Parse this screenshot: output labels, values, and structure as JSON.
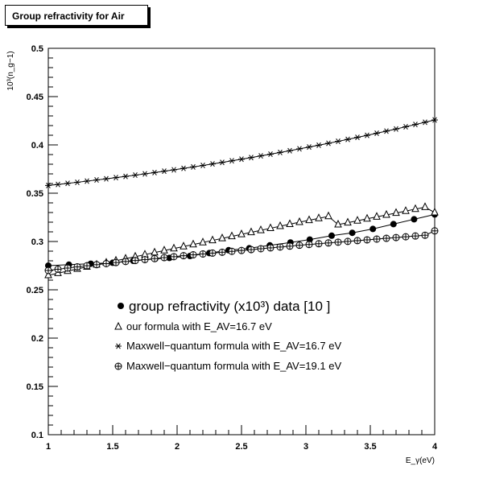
{
  "chart_data": {
    "type": "scatter",
    "title": "Group refractivity for Air",
    "xlabel": "E_γ(eV)",
    "ylabel": "10³(n_g−1)",
    "xlim": [
      1,
      4
    ],
    "ylim": [
      0.1,
      0.5
    ],
    "x_ticks": [
      "1",
      "1.5",
      "2",
      "2.5",
      "3",
      "3.5",
      "4"
    ],
    "y_ticks": [
      "0.1",
      "0.15",
      "0.2",
      "0.25",
      "0.3",
      "0.35",
      "0.4",
      "0.45",
      "0.5"
    ],
    "grid": false,
    "legend_position": "center",
    "legend": [
      "group refractivity (x10³) data   [10   ]",
      "our formula with E_AV=16.7 eV",
      "Maxwell−quantum formula with E_AV=16.7 eV",
      "Maxwell−quantum formula with E_AV=19.1 eV"
    ],
    "series": [
      {
        "marker": "filled-circle",
        "with_line": true,
        "x": [
          1.0,
          1.16,
          1.33,
          1.5,
          1.66,
          1.83,
          1.94,
          2.1,
          2.25,
          2.4,
          2.56,
          2.72,
          2.88,
          3.03,
          3.2,
          3.36,
          3.52,
          3.68,
          3.84,
          4.0
        ],
        "y": [
          0.275,
          0.276,
          0.277,
          0.278,
          0.28,
          0.282,
          0.283,
          0.285,
          0.288,
          0.291,
          0.293,
          0.296,
          0.299,
          0.302,
          0.306,
          0.309,
          0.313,
          0.318,
          0.323,
          0.328
        ]
      },
      {
        "marker": "open-triangle",
        "with_line": true,
        "x": [
          1.0,
          1.075,
          1.15,
          1.225,
          1.3,
          1.375,
          1.45,
          1.525,
          1.6,
          1.675,
          1.75,
          1.825,
          1.9,
          1.975,
          2.05,
          2.125,
          2.2,
          2.275,
          2.35,
          2.425,
          2.5,
          2.575,
          2.65,
          2.725,
          2.8,
          2.875,
          2.95,
          3.025,
          3.1,
          3.175,
          3.25,
          3.325,
          3.4,
          3.475,
          3.55,
          3.625,
          3.7,
          3.775,
          3.85,
          3.925,
          4.0
        ],
        "y": [
          0.265,
          0.2672,
          0.2694,
          0.2716,
          0.2738,
          0.2759,
          0.278,
          0.2801,
          0.2822,
          0.2843,
          0.2864,
          0.2885,
          0.2906,
          0.2927,
          0.2948,
          0.2969,
          0.299,
          0.3011,
          0.3032,
          0.3053,
          0.3074,
          0.3095,
          0.3116,
          0.3137,
          0.3158,
          0.3179,
          0.32,
          0.322,
          0.324,
          0.326,
          0.3175,
          0.3195,
          0.3215,
          0.3235,
          0.3255,
          0.3275,
          0.3295,
          0.3315,
          0.3335,
          0.3355,
          0.33
        ]
      },
      {
        "marker": "asterisk",
        "with_line": true,
        "x": [
          1.0,
          1.075,
          1.15,
          1.225,
          1.3,
          1.375,
          1.45,
          1.525,
          1.6,
          1.675,
          1.75,
          1.825,
          1.9,
          1.975,
          2.05,
          2.125,
          2.2,
          2.275,
          2.35,
          2.425,
          2.5,
          2.575,
          2.65,
          2.725,
          2.8,
          2.875,
          2.95,
          3.025,
          3.1,
          3.175,
          3.25,
          3.325,
          3.4,
          3.475,
          3.55,
          3.625,
          3.7,
          3.775,
          3.85,
          3.925,
          4.0
        ],
        "y": [
          0.358,
          0.3591,
          0.3602,
          0.3613,
          0.3625,
          0.3637,
          0.3649,
          0.3661,
          0.3674,
          0.3687,
          0.37,
          0.3714,
          0.3728,
          0.3742,
          0.3757,
          0.3772,
          0.3787,
          0.3803,
          0.3819,
          0.3835,
          0.3852,
          0.3869,
          0.3886,
          0.3904,
          0.3922,
          0.394,
          0.3959,
          0.3978,
          0.3997,
          0.4017,
          0.4037,
          0.4057,
          0.4078,
          0.4099,
          0.4121,
          0.4143,
          0.4165,
          0.4188,
          0.4211,
          0.4234,
          0.4258
        ]
      },
      {
        "marker": "open-circle-cross",
        "with_line": true,
        "x": [
          1.0,
          1.075,
          1.15,
          1.225,
          1.3,
          1.375,
          1.45,
          1.525,
          1.6,
          1.675,
          1.75,
          1.825,
          1.9,
          1.975,
          2.05,
          2.125,
          2.2,
          2.275,
          2.35,
          2.425,
          2.5,
          2.575,
          2.65,
          2.725,
          2.8,
          2.875,
          2.95,
          3.025,
          3.1,
          3.175,
          3.25,
          3.325,
          3.4,
          3.475,
          3.55,
          3.625,
          3.7,
          3.775,
          3.85,
          3.925,
          4.0
        ],
        "y": [
          0.27,
          0.2713,
          0.2725,
          0.2737,
          0.2749,
          0.276,
          0.2771,
          0.2782,
          0.2793,
          0.2803,
          0.2813,
          0.2823,
          0.2833,
          0.2843,
          0.2853,
          0.2862,
          0.2871,
          0.288,
          0.2889,
          0.2898,
          0.2907,
          0.2916,
          0.2925,
          0.2934,
          0.2943,
          0.2952,
          0.2961,
          0.2969,
          0.2977,
          0.2985,
          0.2993,
          0.3001,
          0.3009,
          0.3017,
          0.3025,
          0.3033,
          0.3041,
          0.3049,
          0.3057,
          0.3065,
          0.311
        ]
      }
    ]
  }
}
